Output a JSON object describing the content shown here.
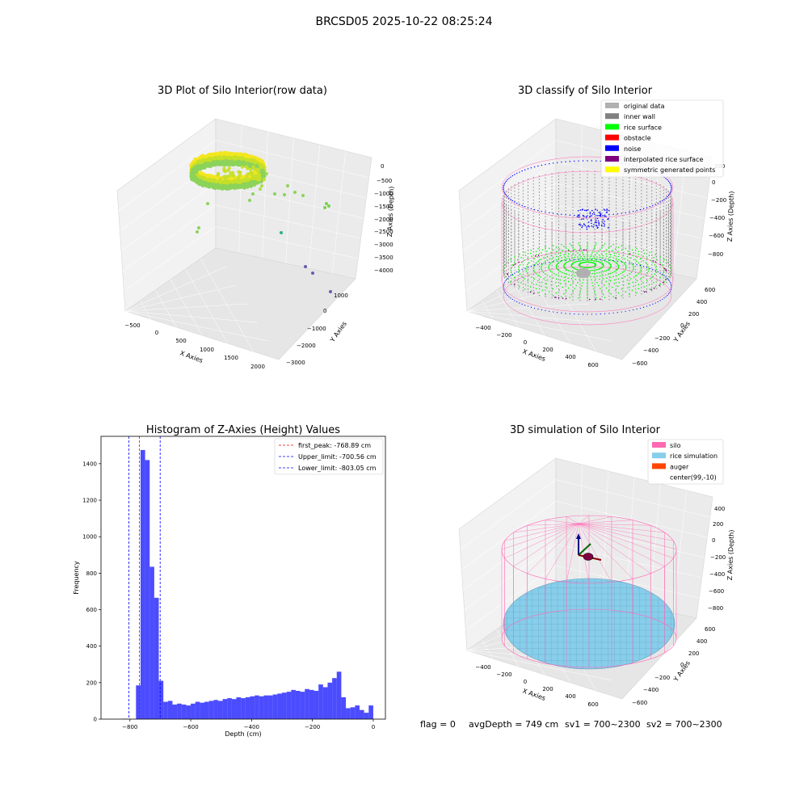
{
  "figure": {
    "suptitle": "BRCSD05 2025-10-22 08:25:24",
    "status": {
      "flag": "flag = 0",
      "avg_depth": "avgDepth = 749 cm",
      "sv1": "sv1 = 700~2300",
      "sv2": "sv2 = 700~2300"
    }
  },
  "panels": {
    "raw": {
      "title": "3D Plot of Silo Interior(row data)",
      "xlabel": "X Axies",
      "ylabel": "Y Axies",
      "zlabel": "Z Axies (Depth)",
      "xticks": [
        "−500",
        "0",
        "500",
        "1000",
        "1500",
        "2000"
      ],
      "yticks": [
        "1000",
        "0",
        "−1000",
        "−2000",
        "−3000"
      ],
      "zticks": [
        "0",
        "−500",
        "−1000",
        "−1500",
        "−2000",
        "−2500",
        "−3000",
        "−3500",
        "−4000"
      ]
    },
    "classify": {
      "title": "3D classify of Silo Interior",
      "xlabel": "X Axies",
      "ylabel": "Y Axies",
      "zlabel": "Z Axies (Depth)",
      "xticks": [
        "−400",
        "−200",
        "0",
        "200",
        "400",
        "600"
      ],
      "yticks": [
        "600",
        "400",
        "200",
        "0",
        "−200",
        "−400",
        "−600"
      ],
      "zticks": [
        "200",
        "0",
        "−200",
        "−400",
        "−600",
        "−800"
      ],
      "legend": [
        {
          "label": "original data",
          "color": "#b0b0b0"
        },
        {
          "label": "inner wall",
          "color": "#808080"
        },
        {
          "label": "rice surface",
          "color": "#00ff00"
        },
        {
          "label": "obstacle",
          "color": "#ff0000"
        },
        {
          "label": "noise",
          "color": "#0000ff"
        },
        {
          "label": "interpolated rice surface",
          "color": "#800080"
        },
        {
          "label": "symmetric generated points",
          "color": "#ffff00"
        }
      ]
    },
    "simulation": {
      "title": "3D simulation of Silo Interior",
      "xlabel": "X Axies",
      "ylabel": "Y Axies",
      "zlabel": "Z Axies (Depth)",
      "xticks": [
        "−400",
        "−200",
        "0",
        "200",
        "400",
        "600"
      ],
      "yticks": [
        "600",
        "400",
        "200",
        "0",
        "−200",
        "−400",
        "−600"
      ],
      "zticks": [
        "400",
        "200",
        "0",
        "−200",
        "−400",
        "−600",
        "−800"
      ],
      "legend": [
        {
          "label": "silo",
          "color": "#ff69b4"
        },
        {
          "label": "rice simulation",
          "color": "#87ceeb"
        },
        {
          "label": "auger",
          "color": "#ff4500"
        },
        {
          "label": "center(99,-10)",
          "color": "#ffffff"
        }
      ]
    }
  },
  "chart_data": [
    {
      "type": "scatter",
      "title": "3D Plot of Silo Interior(row data)",
      "xlabel": "X Axies",
      "ylabel": "Y Axies",
      "zlabel": "Z Axies (Depth)",
      "xlim": [
        -700,
        2300
      ],
      "ylim": [
        -3300,
        1500
      ],
      "zlim": [
        -4300,
        200
      ],
      "grid": true
    },
    {
      "type": "scatter",
      "title": "3D classify of Silo Interior",
      "xlabel": "X Axies",
      "ylabel": "Y Axies",
      "zlabel": "Z Axies (Depth)",
      "xlim": [
        -500,
        700
      ],
      "ylim": [
        -700,
        700
      ],
      "zlim": [
        -900,
        300
      ],
      "legend": [
        "original data",
        "inner wall",
        "rice surface",
        "obstacle",
        "noise",
        "interpolated rice surface",
        "symmetric generated points"
      ],
      "legend_position": "top-right",
      "grid": true
    },
    {
      "type": "bar",
      "title": "Histogram of Z-Axies (Height) Values",
      "xlabel": "Depth (cm)",
      "ylabel": "Frequency",
      "xlim": [
        -895,
        40
      ],
      "ylim": [
        0,
        1550
      ],
      "xticks": [
        -800,
        -600,
        -400,
        -200,
        0
      ],
      "yticks": [
        0,
        200,
        400,
        600,
        800,
        1000,
        1200,
        1400
      ],
      "color": "#0000ff",
      "bin_width": 15,
      "bins_left": [
        -825,
        -810,
        -795,
        -780,
        -765,
        -750,
        -735,
        -720,
        -705,
        -690,
        -675,
        -660,
        -645,
        -630,
        -615,
        -600,
        -585,
        -570,
        -555,
        -540,
        -525,
        -510,
        -495,
        -480,
        -465,
        -450,
        -435,
        -420,
        -405,
        -390,
        -375,
        -360,
        -345,
        -330,
        -315,
        -300,
        -285,
        -270,
        -255,
        -240,
        -225,
        -210,
        -195,
        -180,
        -165,
        -150,
        -135,
        -120,
        -105,
        -90,
        -75,
        -60,
        -45,
        -30,
        -15
      ],
      "values": [
        2,
        1,
        0,
        185,
        1475,
        1420,
        835,
        665,
        210,
        95,
        100,
        80,
        85,
        80,
        75,
        85,
        95,
        90,
        95,
        100,
        105,
        100,
        110,
        115,
        110,
        120,
        115,
        120,
        125,
        130,
        125,
        130,
        130,
        135,
        140,
        145,
        150,
        160,
        155,
        150,
        165,
        160,
        155,
        190,
        175,
        200,
        225,
        260,
        120,
        60,
        65,
        75,
        50,
        35,
        75
      ],
      "vlines": [
        {
          "name": "first_peak: -768.89 cm",
          "x": -768.89,
          "color": "#ff0000"
        },
        {
          "name": "Upper_limit: -700.56 cm",
          "x": -700.56,
          "color": "#0000ff"
        },
        {
          "name": "Lower_limit: -803.05 cm",
          "x": -803.05,
          "color": "#0000ff"
        }
      ],
      "legend_position": "top-right"
    },
    {
      "type": "scatter",
      "title": "3D simulation of Silo Interior",
      "xlabel": "X Axies",
      "ylabel": "Y Axies",
      "zlabel": "Z Axies (Depth)",
      "xlim": [
        -500,
        700
      ],
      "ylim": [
        -700,
        700
      ],
      "zlim": [
        -900,
        500
      ],
      "legend": [
        "silo",
        "rice simulation",
        "auger",
        "center(99,-10)"
      ],
      "legend_position": "top-right",
      "grid": true
    }
  ]
}
